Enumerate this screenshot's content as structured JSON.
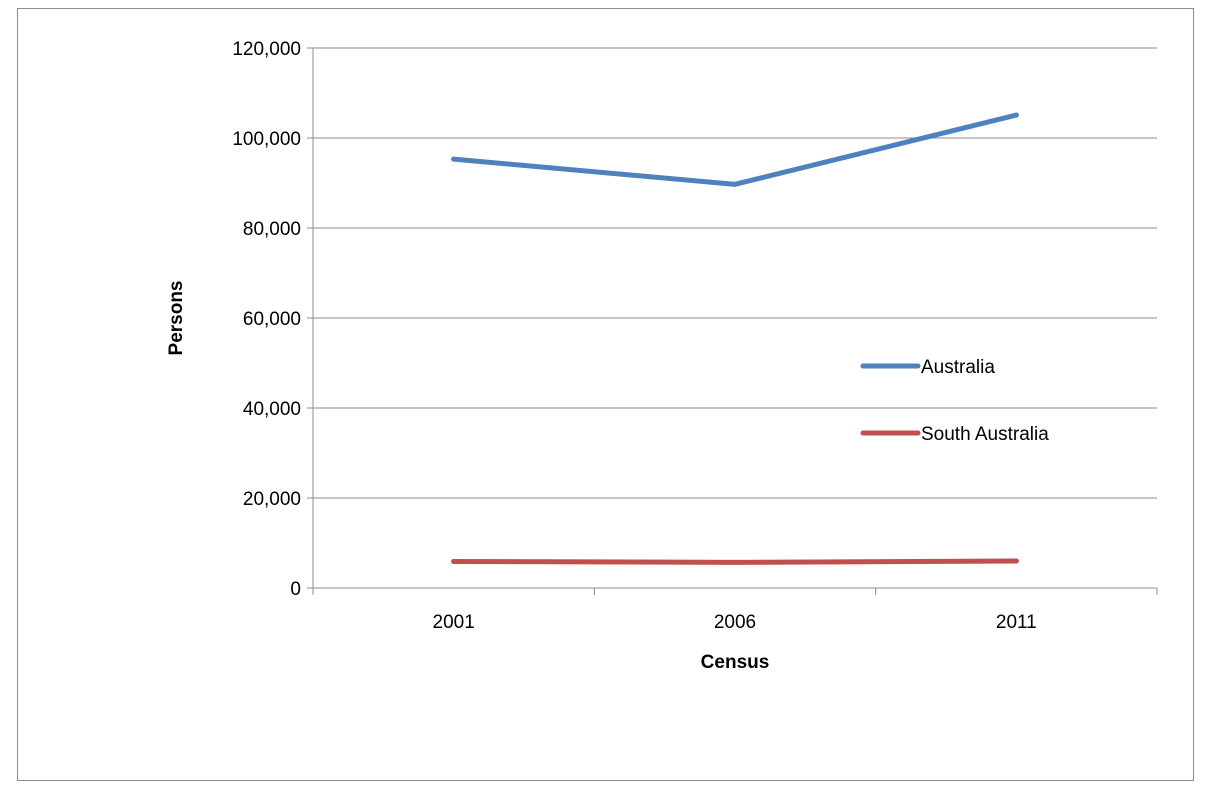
{
  "chart_data": {
    "type": "line",
    "title": "",
    "xlabel": "Census",
    "ylabel": "Persons",
    "categories": [
      "2001",
      "2006",
      "2011"
    ],
    "ylim": [
      0,
      120000
    ],
    "y_ticks": [
      0,
      20000,
      40000,
      60000,
      80000,
      100000,
      120000
    ],
    "y_tick_labels": [
      "0",
      "20,000",
      "40,000",
      "60,000",
      "80,000",
      "100,000",
      "120,000"
    ],
    "grid": "horizontal",
    "legend_position": "right",
    "series": [
      {
        "name": "Australia",
        "color": "#4f81bd",
        "values": [
          95300,
          89700,
          105100
        ]
      },
      {
        "name": "South Australia",
        "color": "#c0504d",
        "values": [
          5900,
          5700,
          6000
        ]
      }
    ]
  }
}
